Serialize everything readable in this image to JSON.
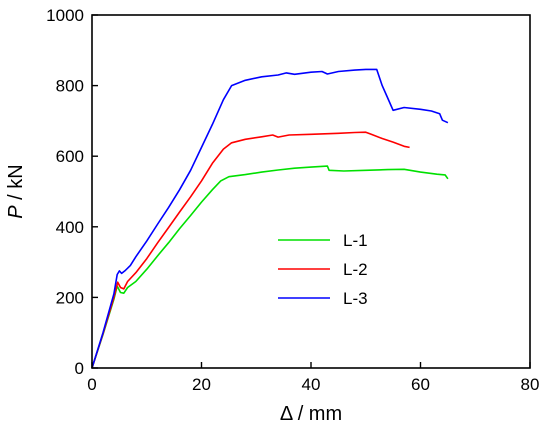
{
  "chart_data": {
    "type": "line",
    "xlabel": "Δ / mm",
    "ylabel_italic": "P",
    "ylabel_rest": " / kN",
    "xlim": [
      0,
      80
    ],
    "ylim": [
      0,
      1000
    ],
    "xticks": [
      0,
      20,
      40,
      60,
      80
    ],
    "yticks": [
      0,
      200,
      400,
      600,
      800,
      1000
    ],
    "grid": false,
    "legend_position": "center",
    "series": [
      {
        "name": "L-1",
        "color": "#00e000",
        "points": [
          [
            0,
            0
          ],
          [
            2,
            95
          ],
          [
            4,
            195
          ],
          [
            4.6,
            232
          ],
          [
            5.2,
            214
          ],
          [
            5.8,
            212
          ],
          [
            6.5,
            228
          ],
          [
            8,
            245
          ],
          [
            10,
            280
          ],
          [
            12,
            318
          ],
          [
            14,
            355
          ],
          [
            16,
            395
          ],
          [
            18,
            432
          ],
          [
            20,
            470
          ],
          [
            22,
            505
          ],
          [
            23.5,
            530
          ],
          [
            25,
            542
          ],
          [
            28,
            548
          ],
          [
            31,
            555
          ],
          [
            34,
            561
          ],
          [
            37,
            566
          ],
          [
            40,
            569
          ],
          [
            43,
            572
          ],
          [
            43.3,
            560
          ],
          [
            46,
            558
          ],
          [
            50,
            560
          ],
          [
            54,
            562
          ],
          [
            57,
            563
          ],
          [
            60,
            555
          ],
          [
            63,
            549
          ],
          [
            64.5,
            547
          ],
          [
            65,
            536
          ]
        ]
      },
      {
        "name": "L-2",
        "color": "#ff0000",
        "points": [
          [
            0,
            0
          ],
          [
            2,
            97
          ],
          [
            4,
            200
          ],
          [
            4.7,
            243
          ],
          [
            5.2,
            228
          ],
          [
            5.8,
            224
          ],
          [
            6.5,
            245
          ],
          [
            8,
            270
          ],
          [
            10,
            310
          ],
          [
            12,
            355
          ],
          [
            14,
            398
          ],
          [
            16,
            442
          ],
          [
            18,
            485
          ],
          [
            20,
            530
          ],
          [
            22,
            580
          ],
          [
            24,
            620
          ],
          [
            25.5,
            638
          ],
          [
            28,
            648
          ],
          [
            31,
            655
          ],
          [
            33,
            660
          ],
          [
            34,
            654
          ],
          [
            36,
            660
          ],
          [
            40,
            662
          ],
          [
            45,
            665
          ],
          [
            48,
            667
          ],
          [
            50,
            668
          ],
          [
            51,
            662
          ],
          [
            53,
            650
          ],
          [
            55,
            640
          ],
          [
            57,
            628
          ],
          [
            58,
            625
          ]
        ]
      },
      {
        "name": "L-3",
        "color": "#0000ff",
        "points": [
          [
            0,
            0
          ],
          [
            2,
            100
          ],
          [
            4,
            210
          ],
          [
            4.6,
            265
          ],
          [
            5.0,
            275
          ],
          [
            5.4,
            268
          ],
          [
            6,
            275
          ],
          [
            7,
            290
          ],
          [
            8,
            315
          ],
          [
            10,
            360
          ],
          [
            12,
            408
          ],
          [
            14,
            455
          ],
          [
            16,
            505
          ],
          [
            18,
            560
          ],
          [
            20,
            625
          ],
          [
            22,
            690
          ],
          [
            24,
            760
          ],
          [
            25.5,
            800
          ],
          [
            28,
            815
          ],
          [
            31,
            825
          ],
          [
            34,
            830
          ],
          [
            35.5,
            836
          ],
          [
            37,
            832
          ],
          [
            40,
            838
          ],
          [
            42,
            840
          ],
          [
            43,
            833
          ],
          [
            45,
            840
          ],
          [
            48,
            844
          ],
          [
            50,
            846
          ],
          [
            52,
            846
          ],
          [
            53,
            800
          ],
          [
            54,
            765
          ],
          [
            55,
            730
          ],
          [
            57,
            738
          ],
          [
            60,
            733
          ],
          [
            62,
            728
          ],
          [
            63.5,
            720
          ],
          [
            64,
            702
          ],
          [
            65,
            695
          ]
        ]
      }
    ]
  }
}
